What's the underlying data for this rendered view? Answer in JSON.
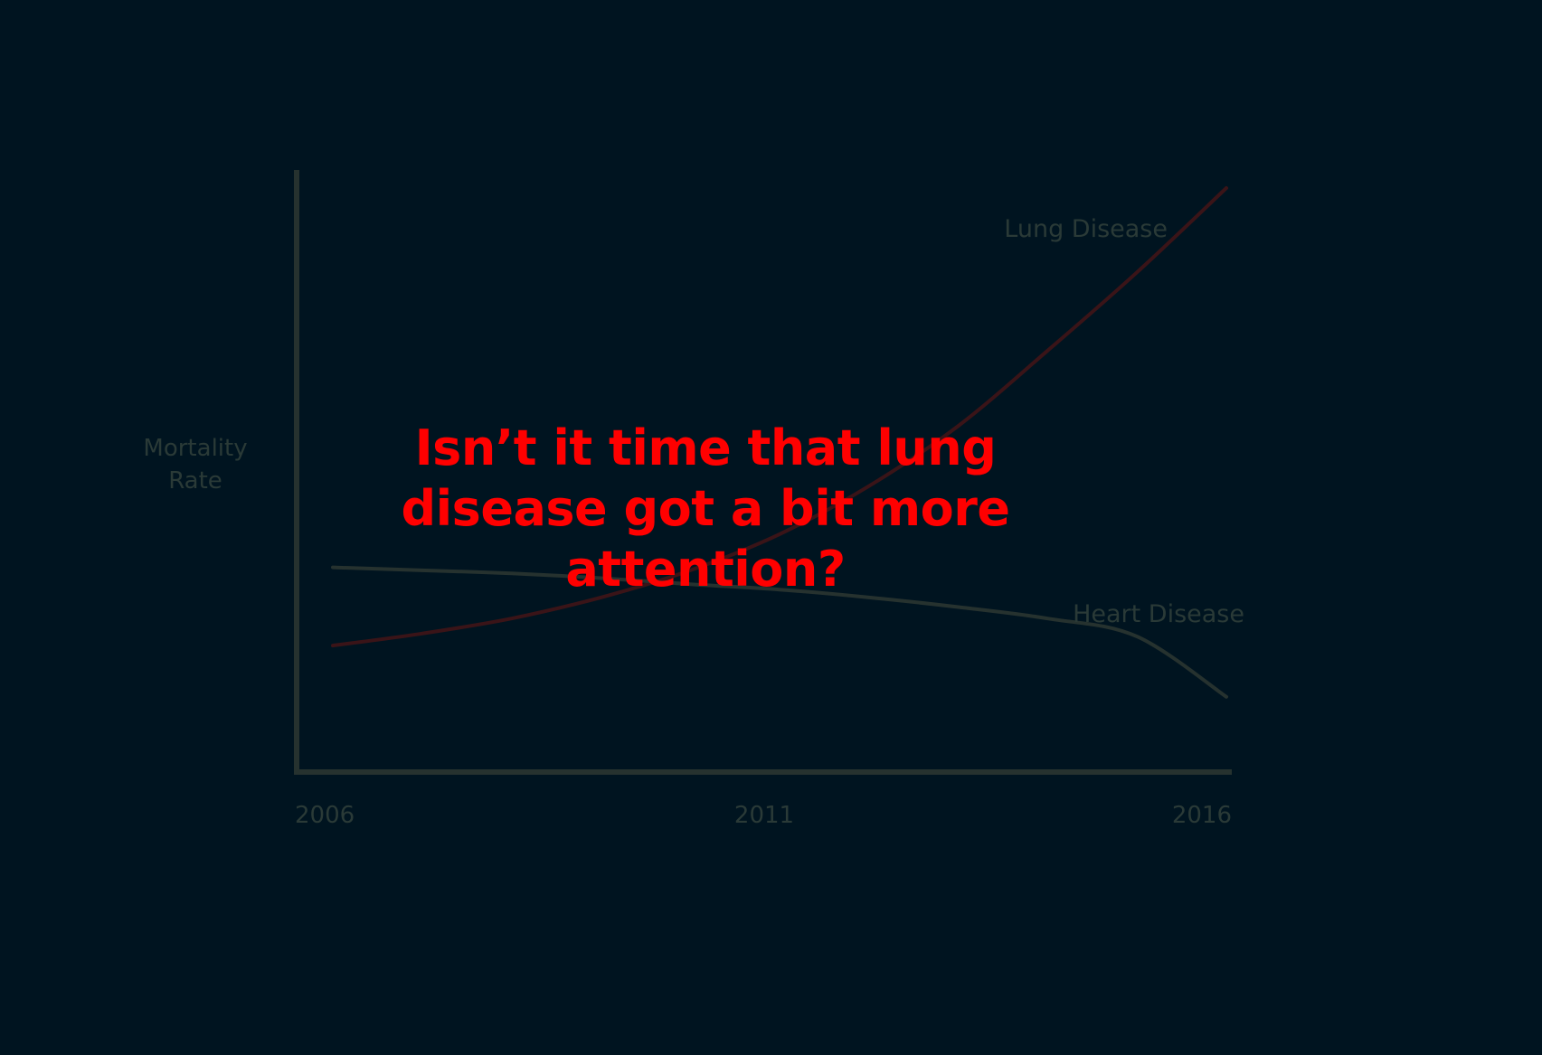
{
  "headline": "Isn’t it time that lung disease got a bit more attention?",
  "colors": {
    "background": "#001420",
    "axis": "#26322f",
    "text_muted": "#2a3a37",
    "lung_line": "#3a1418",
    "heart_line": "#26322f",
    "headline": "#ff0000"
  },
  "chart_data": {
    "type": "line",
    "title": "",
    "xlabel": "",
    "ylabel_lines": [
      "Mortality",
      "Rate"
    ],
    "x_ticks": [
      "2006",
      "2011",
      "2016"
    ],
    "xlim": [
      2006,
      2016
    ],
    "ylim": [
      0,
      100
    ],
    "grid": false,
    "series": [
      {
        "name": "Lung Disease",
        "x": [
          2006,
          2007,
          2008,
          2009,
          2010,
          2011,
          2012,
          2013,
          2014,
          2015,
          2016
        ],
        "y": [
          21,
          23,
          25.5,
          29,
          33.5,
          39.5,
          47.5,
          57.5,
          70,
          83,
          97
        ]
      },
      {
        "name": "Heart Disease",
        "x": [
          2006,
          2007,
          2008,
          2009,
          2010,
          2011,
          2012,
          2013,
          2014,
          2015,
          2016
        ],
        "y": [
          34,
          33.5,
          33,
          32.2,
          31.2,
          30.3,
          29,
          27.4,
          25.5,
          22.5,
          12.5
        ]
      }
    ]
  }
}
